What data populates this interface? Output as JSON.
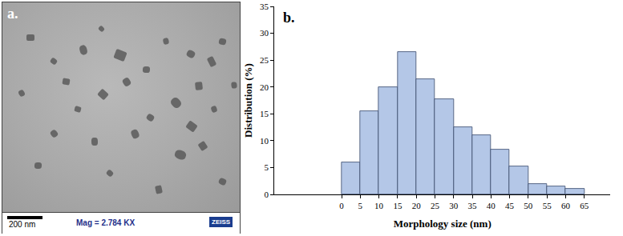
{
  "chart_data": {
    "type": "histogram",
    "bins": [
      0,
      5,
      10,
      15,
      20,
      25,
      30,
      35,
      40,
      45,
      50,
      55,
      60,
      65
    ],
    "values": [
      6,
      15.5,
      20,
      26.5,
      21.4,
      17.7,
      12.5,
      11,
      8.3,
      5.2,
      2,
      1.5,
      1
    ],
    "color": "#b4c7e7",
    "x_label": "Morphology size (nm)",
    "y_label": "Distribution (%)",
    "annotations": [
      "b."
    ],
    "xlim": [
      -18,
      72
    ],
    "xticks": [
      0,
      5,
      10,
      15,
      20,
      25,
      30,
      35,
      40,
      45,
      50,
      55,
      60,
      65
    ],
    "ylim": [
      0,
      35
    ],
    "yticks": [
      0,
      5,
      10,
      15,
      20,
      25,
      30,
      35
    ],
    "grid": false
  },
  "micrograph": {
    "panel_label": "a.",
    "scale_bar": "200 nm",
    "magnification": "Mag = 2.784 KX",
    "brand": "ZEISS"
  }
}
